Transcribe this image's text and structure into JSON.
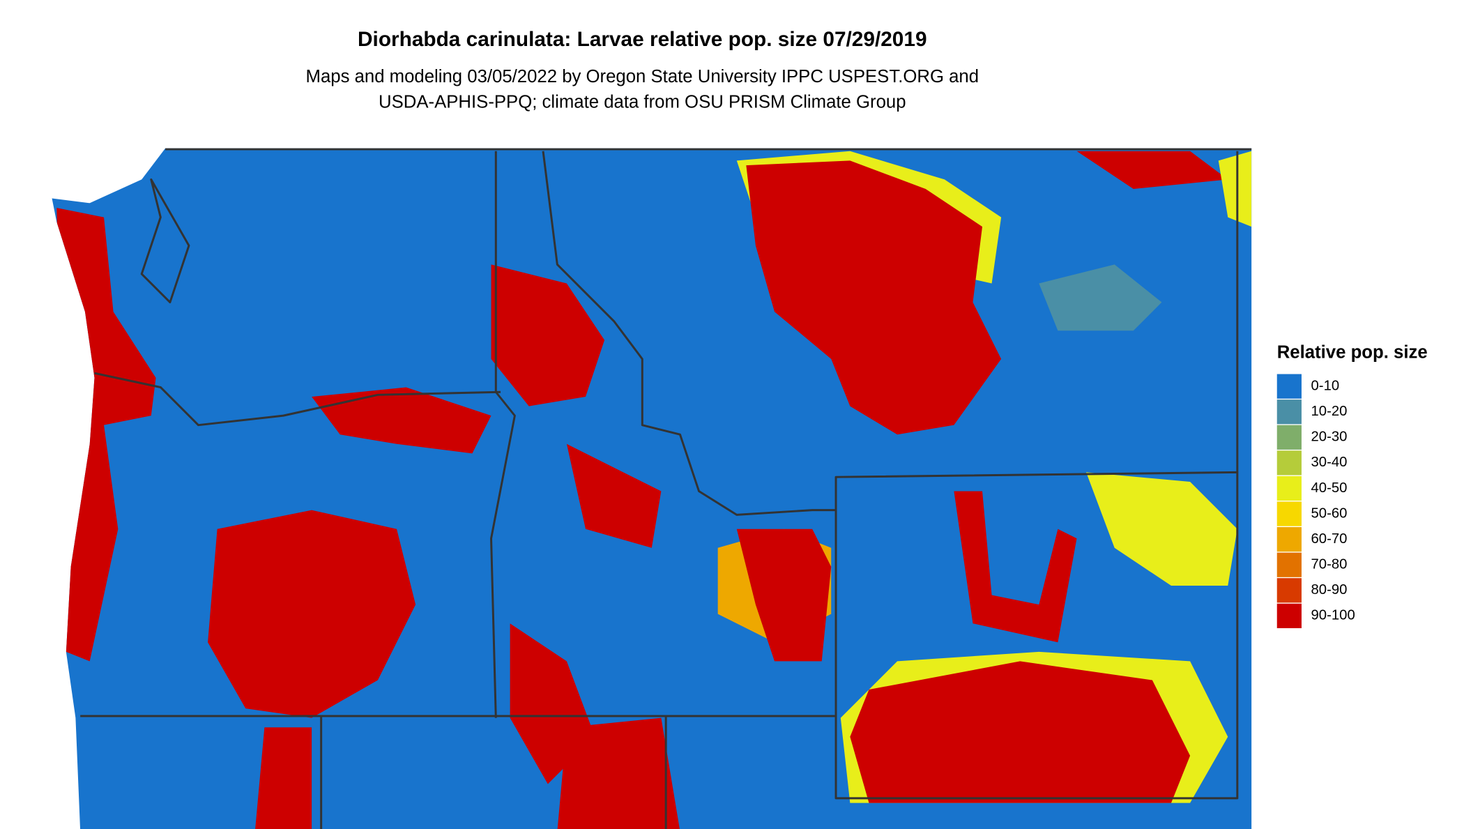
{
  "title": "Diorhabda carinulata: Larvae relative pop. size 07/29/2019",
  "subtitle": [
    "Maps and modeling 03/05/2022 by Oregon State University IPPC USPEST.ORG and",
    "USDA-APHIS-PPQ; climate data from OSU PRISM Climate Group"
  ],
  "legend": {
    "title": "Relative pop. size",
    "items": [
      {
        "label": "0-10",
        "color": "#1874cd"
      },
      {
        "label": "10-20",
        "color": "#4a8fa6"
      },
      {
        "label": "20-30",
        "color": "#7fae6a"
      },
      {
        "label": "30-40",
        "color": "#b5cc3a"
      },
      {
        "label": "40-50",
        "color": "#e8ee1a"
      },
      {
        "label": "50-60",
        "color": "#f7d800"
      },
      {
        "label": "60-70",
        "color": "#eea800"
      },
      {
        "label": "70-80",
        "color": "#e27200"
      },
      {
        "label": "80-90",
        "color": "#d83a00"
      },
      {
        "label": "90-100",
        "color": "#cd0000"
      }
    ]
  }
}
